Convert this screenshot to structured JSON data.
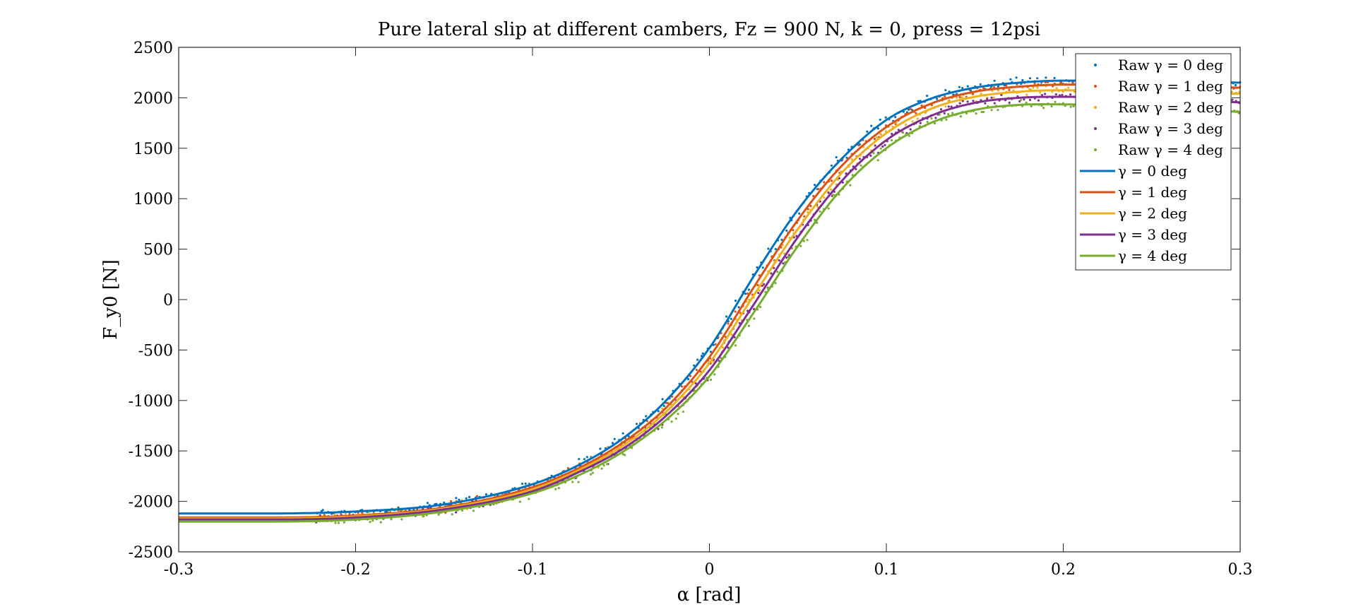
{
  "chart_data": {
    "type": "line",
    "title": "Pure lateral slip at different cambers, Fz = 900 N, k = 0, press = 12psi",
    "xlabel": "α [rad]",
    "ylabel": "F_y0 [N]",
    "xlim": [
      -0.3,
      0.3
    ],
    "ylim": [
      -2500,
      2500
    ],
    "xticks": [
      -0.3,
      -0.2,
      -0.1,
      0,
      0.1,
      0.2,
      0.3
    ],
    "xtick_labels": [
      "-0.3",
      "-0.2",
      "-0.1",
      "0",
      "0.1",
      "0.2",
      "0.3"
    ],
    "yticks": [
      2500,
      2000,
      1500,
      1000,
      500,
      0,
      -500,
      -1000,
      -1500,
      -2000,
      -2500
    ],
    "ytick_labels": [
      "2500",
      "2000",
      "1500",
      "1000",
      "500",
      "0",
      "-500",
      "-1000",
      "-1500",
      "-2000",
      "-2500"
    ],
    "grid": false,
    "legend_position": "top-right",
    "x": [
      -0.3,
      -0.25,
      -0.2,
      -0.15,
      -0.1,
      -0.075,
      -0.05,
      -0.025,
      0,
      0.025,
      0.05,
      0.075,
      0.1,
      0.125,
      0.15,
      0.175,
      0.2,
      0.225,
      0.25,
      0.275,
      0.3
    ],
    "series": [
      {
        "name": "γ = 0 deg",
        "legend_label": "γ = 0 deg",
        "raw_label": "Raw γ = 0 deg",
        "color": "#0072BD",
        "values": [
          -2120,
          -2120,
          -2100,
          -2030,
          -1830,
          -1650,
          -1390,
          -1010,
          -480,
          230,
          890,
          1400,
          1780,
          1990,
          2100,
          2150,
          2170,
          2170,
          2165,
          2160,
          2150
        ]
      },
      {
        "name": "γ = 1 deg",
        "legend_label": "γ = 1 deg",
        "raw_label": "Raw γ = 1 deg",
        "color": "#D95319",
        "values": [
          -2160,
          -2160,
          -2140,
          -2060,
          -1860,
          -1680,
          -1430,
          -1080,
          -570,
          120,
          790,
          1330,
          1710,
          1940,
          2060,
          2110,
          2130,
          2130,
          2120,
          2110,
          2100
        ]
      },
      {
        "name": "γ = 2 deg",
        "legend_label": "γ = 2 deg",
        "raw_label": "Raw γ = 2 deg",
        "color": "#EDB120",
        "values": [
          -2170,
          -2170,
          -2150,
          -2070,
          -1880,
          -1700,
          -1460,
          -1120,
          -630,
          40,
          700,
          1260,
          1650,
          1890,
          2010,
          2060,
          2075,
          2070,
          2060,
          2050,
          2040
        ]
      },
      {
        "name": "γ = 3 deg",
        "legend_label": "γ = 3 deg",
        "raw_label": "Raw γ = 3 deg",
        "color": "#7E2F8E",
        "values": [
          -2180,
          -2180,
          -2160,
          -2080,
          -1900,
          -1720,
          -1490,
          -1160,
          -700,
          -50,
          620,
          1180,
          1580,
          1820,
          1950,
          2000,
          2010,
          2000,
          1985,
          1970,
          1955
        ]
      },
      {
        "name": "γ = 4 deg",
        "legend_label": "γ = 4 deg",
        "raw_label": "Raw γ = 4 deg",
        "color": "#77AC30",
        "values": [
          -2200,
          -2200,
          -2180,
          -2100,
          -1920,
          -1750,
          -1520,
          -1200,
          -760,
          -130,
          530,
          1100,
          1500,
          1750,
          1880,
          1930,
          1935,
          1920,
          1900,
          1880,
          1860
        ]
      }
    ]
  }
}
